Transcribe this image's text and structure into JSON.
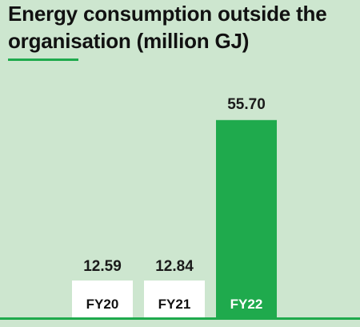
{
  "title": "Energy consumption outside the organisation (million GJ)",
  "colors": {
    "background": "#cde6cf",
    "accent": "#1faa4d",
    "bar_highlight": "#1faa4d",
    "bar_base": "#ffffff",
    "text": "#111111"
  },
  "chart_data": {
    "type": "bar",
    "title": "Energy consumption outside the organisation (million GJ)",
    "categories": [
      "FY20",
      "FY21",
      "FY22"
    ],
    "values": [
      12.59,
      12.84,
      55.7
    ],
    "value_labels": [
      "12.59",
      "12.84",
      "55.70"
    ],
    "highlight": [
      "FY22"
    ],
    "ylim": [
      0,
      60
    ],
    "grid": false,
    "legend": "none"
  }
}
